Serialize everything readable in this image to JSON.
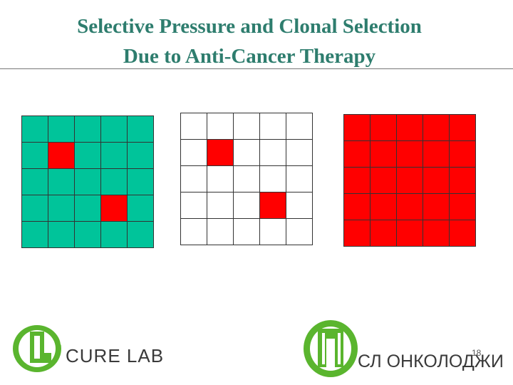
{
  "slide": {
    "title_line1": "Selective Pressure and Clonal Selection",
    "title_line2": "Due to Anti-Cancer Therapy",
    "title_color": "#2e7d6e",
    "page_number": "18"
  },
  "grids": [
    {
      "name": "before-therapy-grid",
      "base_color": "#00c49a",
      "highlight_color": "#ff0000",
      "rows": 5,
      "cols": 5,
      "highlight_cells": [
        [
          1,
          1
        ],
        [
          3,
          3
        ]
      ]
    },
    {
      "name": "after-therapy-grid",
      "base_color": "#ffffff",
      "highlight_color": "#ff0000",
      "rows": 5,
      "cols": 5,
      "highlight_cells": [
        [
          1,
          1
        ],
        [
          3,
          3
        ]
      ]
    },
    {
      "name": "resistant-clone-grid",
      "base_color": "#ff0000",
      "highlight_color": "#ff0000",
      "rows": 5,
      "cols": 5,
      "highlight_cells": []
    }
  ],
  "logos": {
    "cure_lab": {
      "text": "CURE LAB",
      "icon_color": "#5ab52e"
    },
    "sl_oncology": {
      "text": "СЛ ОНКОЛОДЖИ",
      "icon_color": "#5ab52e"
    }
  }
}
